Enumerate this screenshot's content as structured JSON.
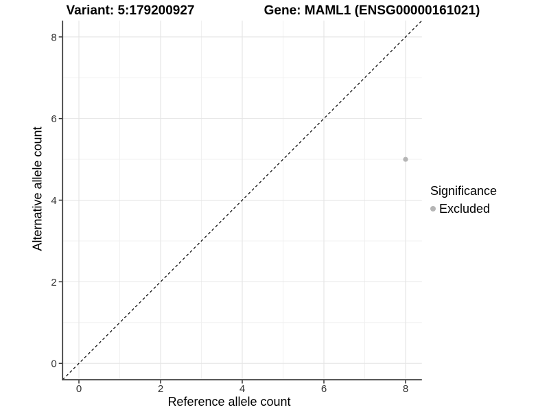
{
  "header": {
    "variant_title": "Variant: 5:179200927",
    "gene_title": "Gene: MAML1 (ENSG00000161021)"
  },
  "legend": {
    "title": "Significance",
    "items": [
      {
        "label": "Excluded",
        "color": "#b5b5b5"
      }
    ]
  },
  "chart_data": {
    "type": "scatter",
    "title_left": "Variant: 5:179200927",
    "title_right": "Gene: MAML1 (ENSG00000161021)",
    "xlabel": "Reference allele count",
    "ylabel": "Alternative allele count",
    "xlim": [
      -0.4,
      8.4
    ],
    "ylim": [
      -0.4,
      8.4
    ],
    "x_ticks": [
      0,
      2,
      4,
      6,
      8
    ],
    "y_ticks": [
      0,
      2,
      4,
      6,
      8
    ],
    "x_minor_ticks": [
      1,
      3,
      5,
      7
    ],
    "y_minor_ticks": [
      1,
      3,
      5,
      7
    ],
    "grid": true,
    "legend_position": "right",
    "series": [
      {
        "name": "Excluded",
        "type": "scatter",
        "color": "#b5b5b5",
        "points": [
          {
            "x": 8,
            "y": 5
          }
        ]
      }
    ],
    "reference_line": {
      "description": "identity line y = x",
      "style": "dashed",
      "color": "#000000",
      "from": [
        -0.4,
        -0.4
      ],
      "to": [
        8.4,
        8.4
      ]
    },
    "colors": {
      "grid_major": "#e4e4e4",
      "grid_minor": "#efefef",
      "axis_line": "#404040",
      "tick_mark": "#333333",
      "tick_label": "#333333",
      "point": "#b5b5b5"
    }
  }
}
